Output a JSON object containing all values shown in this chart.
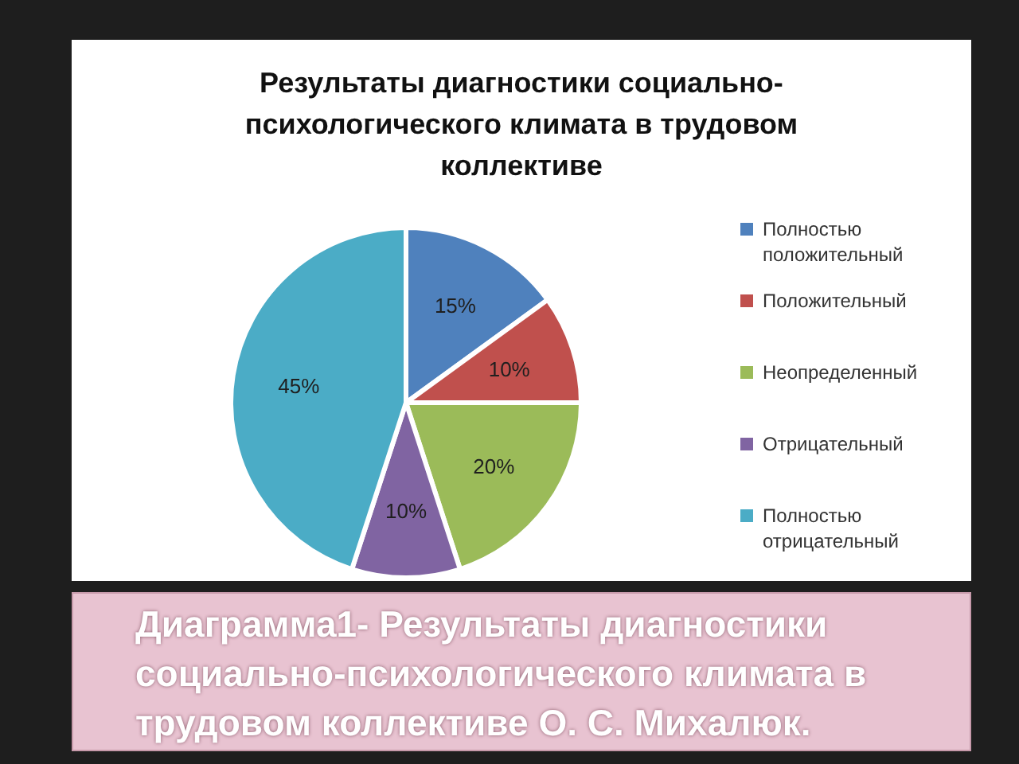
{
  "chart_data": {
    "type": "pie",
    "title": "Результаты диагностики социально-психологического климата в трудовом коллективе",
    "categories": [
      "Полностью положительный",
      "Положительный",
      "Неопределенный",
      "Отрицательный",
      "Полностью отрицательный"
    ],
    "values": [
      15,
      10,
      20,
      10,
      45
    ],
    "colors": [
      "#4f81bd",
      "#c0504d",
      "#9bbb59",
      "#8064a2",
      "#4bacc6"
    ],
    "value_labels": [
      "15%",
      "10%",
      "20%",
      "10%",
      "45%"
    ],
    "legend": "right",
    "annotations": [
      "Диаграмма1- Результаты диагностики социально-психологического климата в трудовом коллективе О. С. Михалюк."
    ]
  }
}
